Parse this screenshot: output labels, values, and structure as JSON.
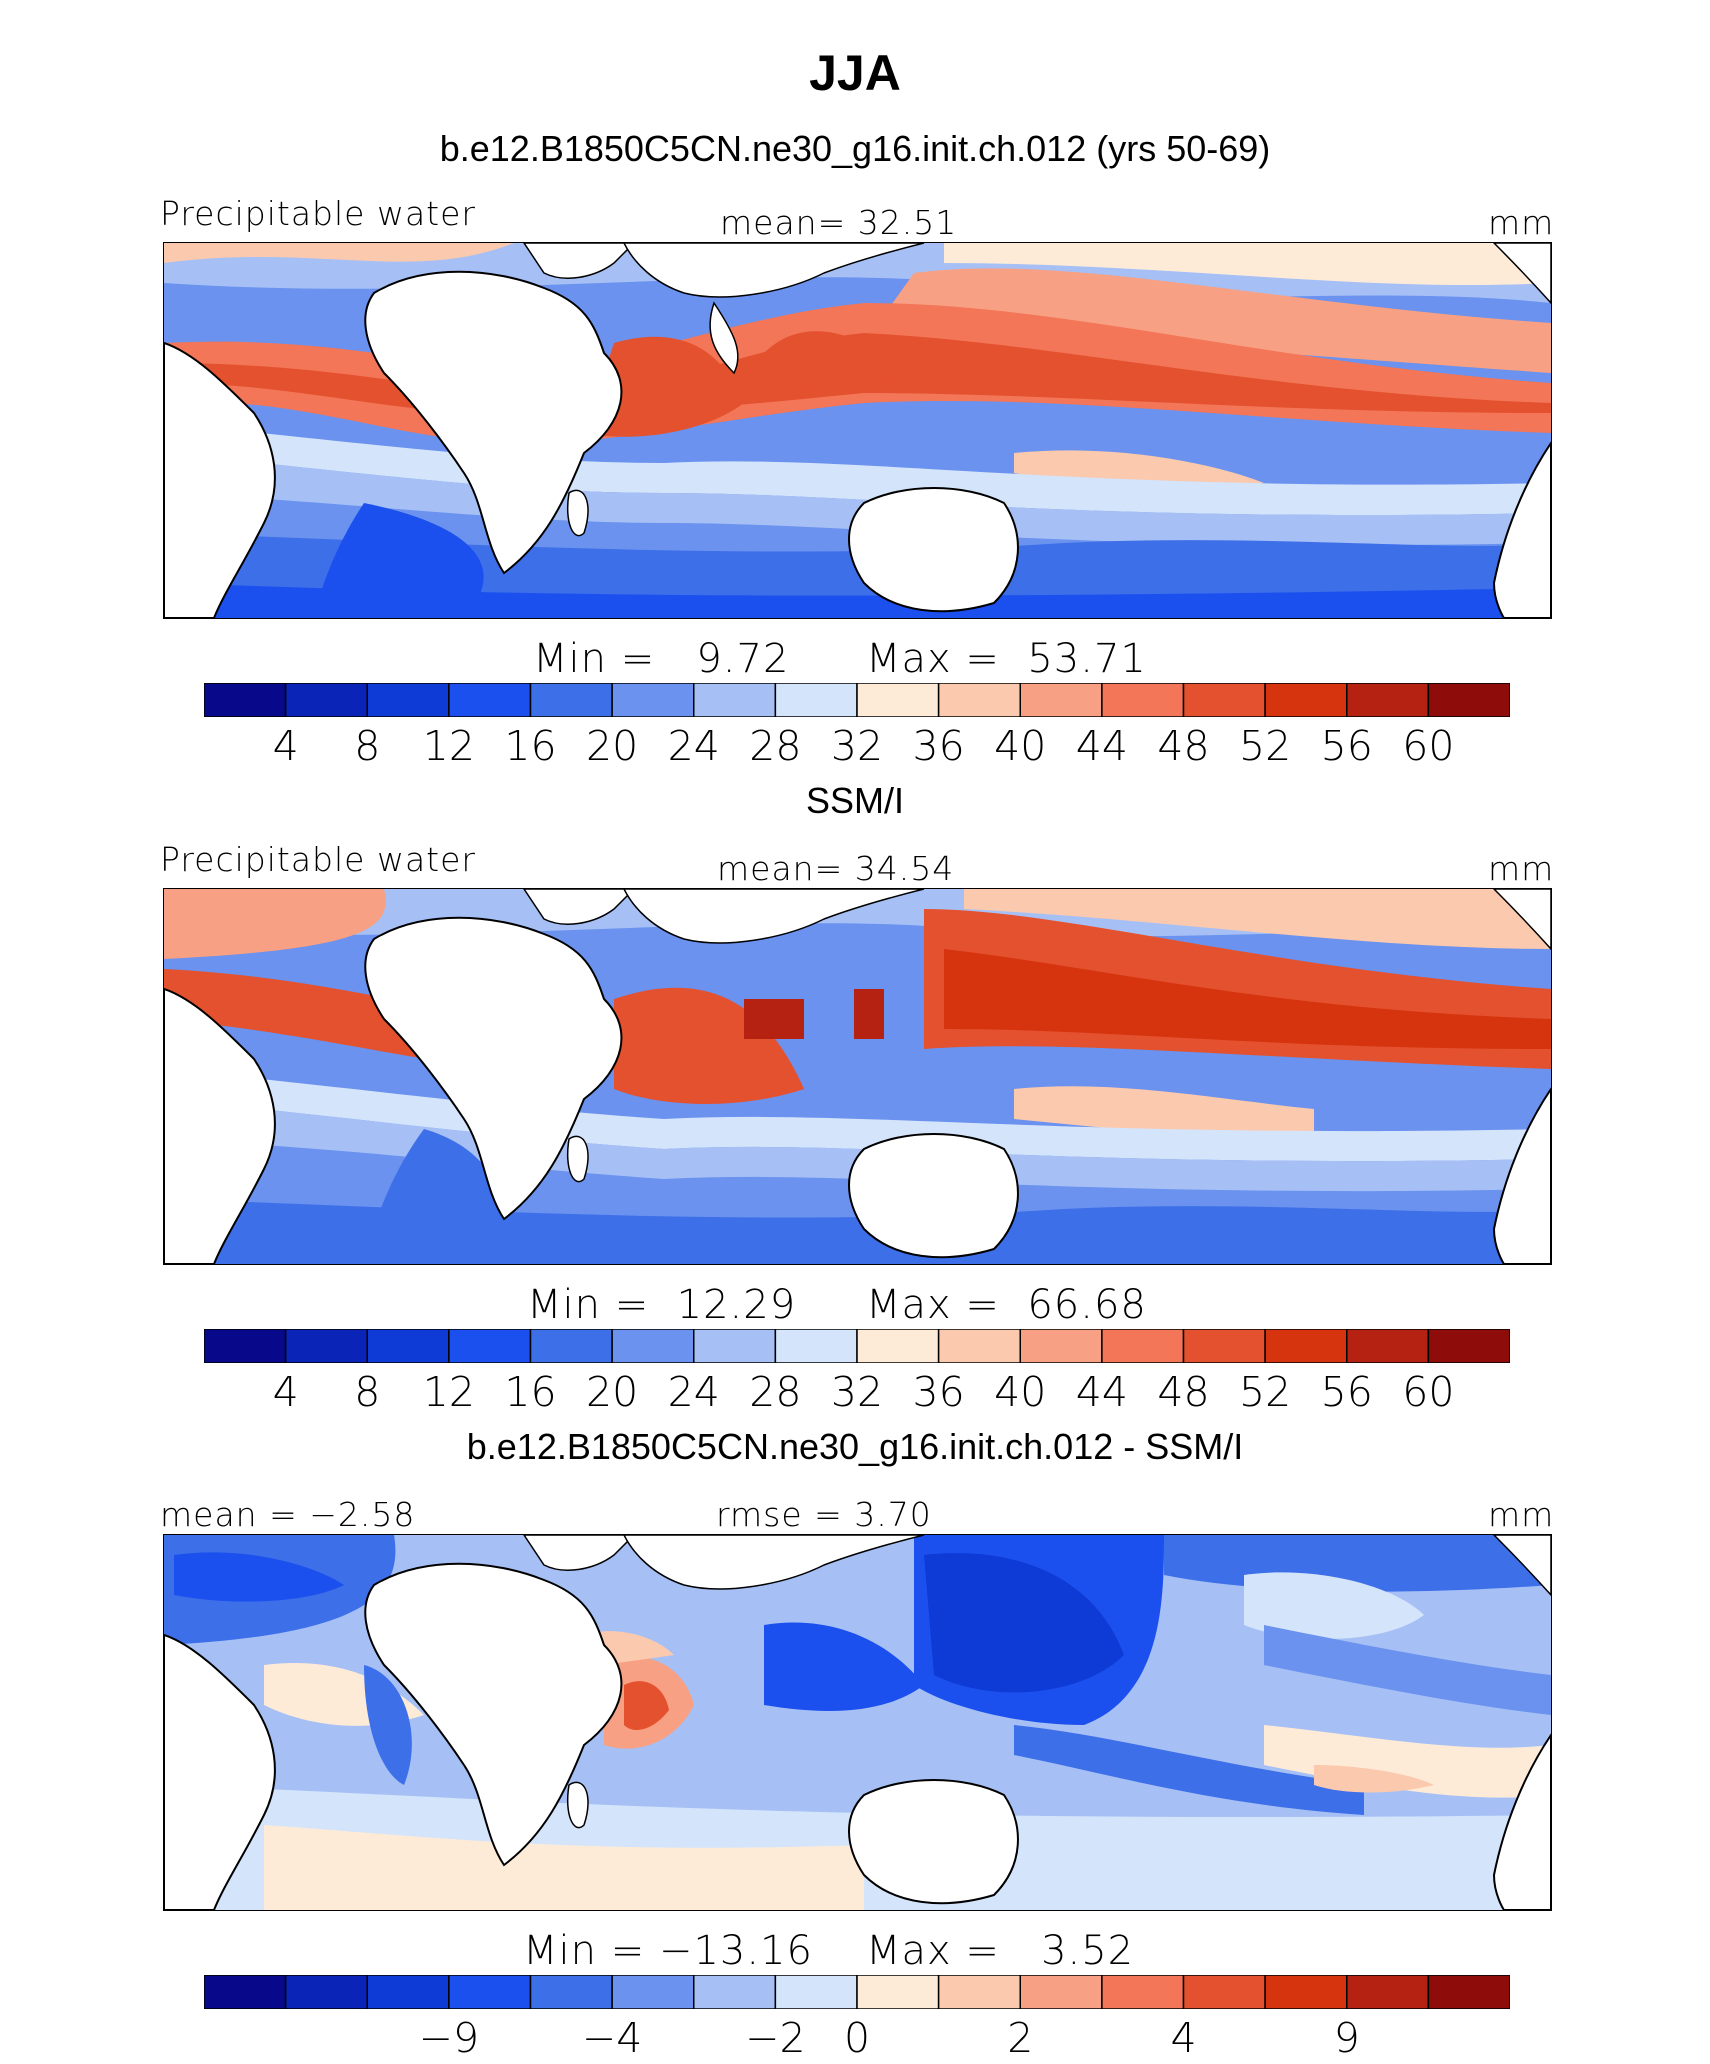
{
  "chart_data": [
    {
      "type": "heatmap",
      "season": "JJA",
      "title": "b.e12.B1850C5CN.ne30_g16.init.ch.012 (yrs 50-69)",
      "left_label": "Precipitable water",
      "center_label": "mean=  32.51",
      "units": "mm",
      "mean": 32.51,
      "min_label": "Min =   9.72",
      "max_label": "Max =  53.71",
      "min": 9.72,
      "max": 53.71,
      "contour_levels": [
        4,
        8,
        12,
        16,
        20,
        24,
        28,
        32,
        36,
        40,
        44,
        48,
        52,
        56,
        60
      ],
      "tick_labels": [
        "4",
        "8",
        "12",
        "16",
        "20",
        "24",
        "28",
        "32",
        "36",
        "40",
        "44",
        "48",
        "52",
        "56",
        "60"
      ]
    },
    {
      "type": "heatmap",
      "title": "SSM/I",
      "left_label": "Precipitable water",
      "center_label": "mean=  34.54",
      "units": "mm",
      "mean": 34.54,
      "min_label": "Min =  12.29",
      "max_label": "Max =  66.68",
      "min": 12.29,
      "max": 66.68,
      "contour_levels": [
        4,
        8,
        12,
        16,
        20,
        24,
        28,
        32,
        36,
        40,
        44,
        48,
        52,
        56,
        60
      ],
      "tick_labels": [
        "4",
        "8",
        "12",
        "16",
        "20",
        "24",
        "28",
        "32",
        "36",
        "40",
        "44",
        "48",
        "52",
        "56",
        "60"
      ]
    },
    {
      "type": "heatmap",
      "title": "b.e12.B1850C5CN.ne30_g16.init.ch.012 - SSM/I",
      "left_label": "mean = −2.58",
      "center_label": "rmse =   3.70",
      "units": "mm",
      "mean": -2.58,
      "rmse": 3.7,
      "min_label": "Min = −13.16",
      "max_label": "Max =   3.52",
      "min": -13.16,
      "max": 3.52,
      "contour_levels": [
        -9,
        -4,
        -2,
        0,
        2,
        4,
        9
      ],
      "tick_labels": [
        "−9",
        "−4",
        "−2",
        "0",
        "2",
        "4",
        "9"
      ]
    }
  ],
  "palette": [
    "#08088a",
    "#0a24b8",
    "#0e3ad6",
    "#1c50ee",
    "#3d6fe8",
    "#6a92ee",
    "#a6c0f5",
    "#d4e4fb",
    "#fdebd8",
    "#fbc9ae",
    "#f7a083",
    "#f27657",
    "#e4512e",
    "#d6340f",
    "#b52212",
    "#8e0d0a"
  ]
}
